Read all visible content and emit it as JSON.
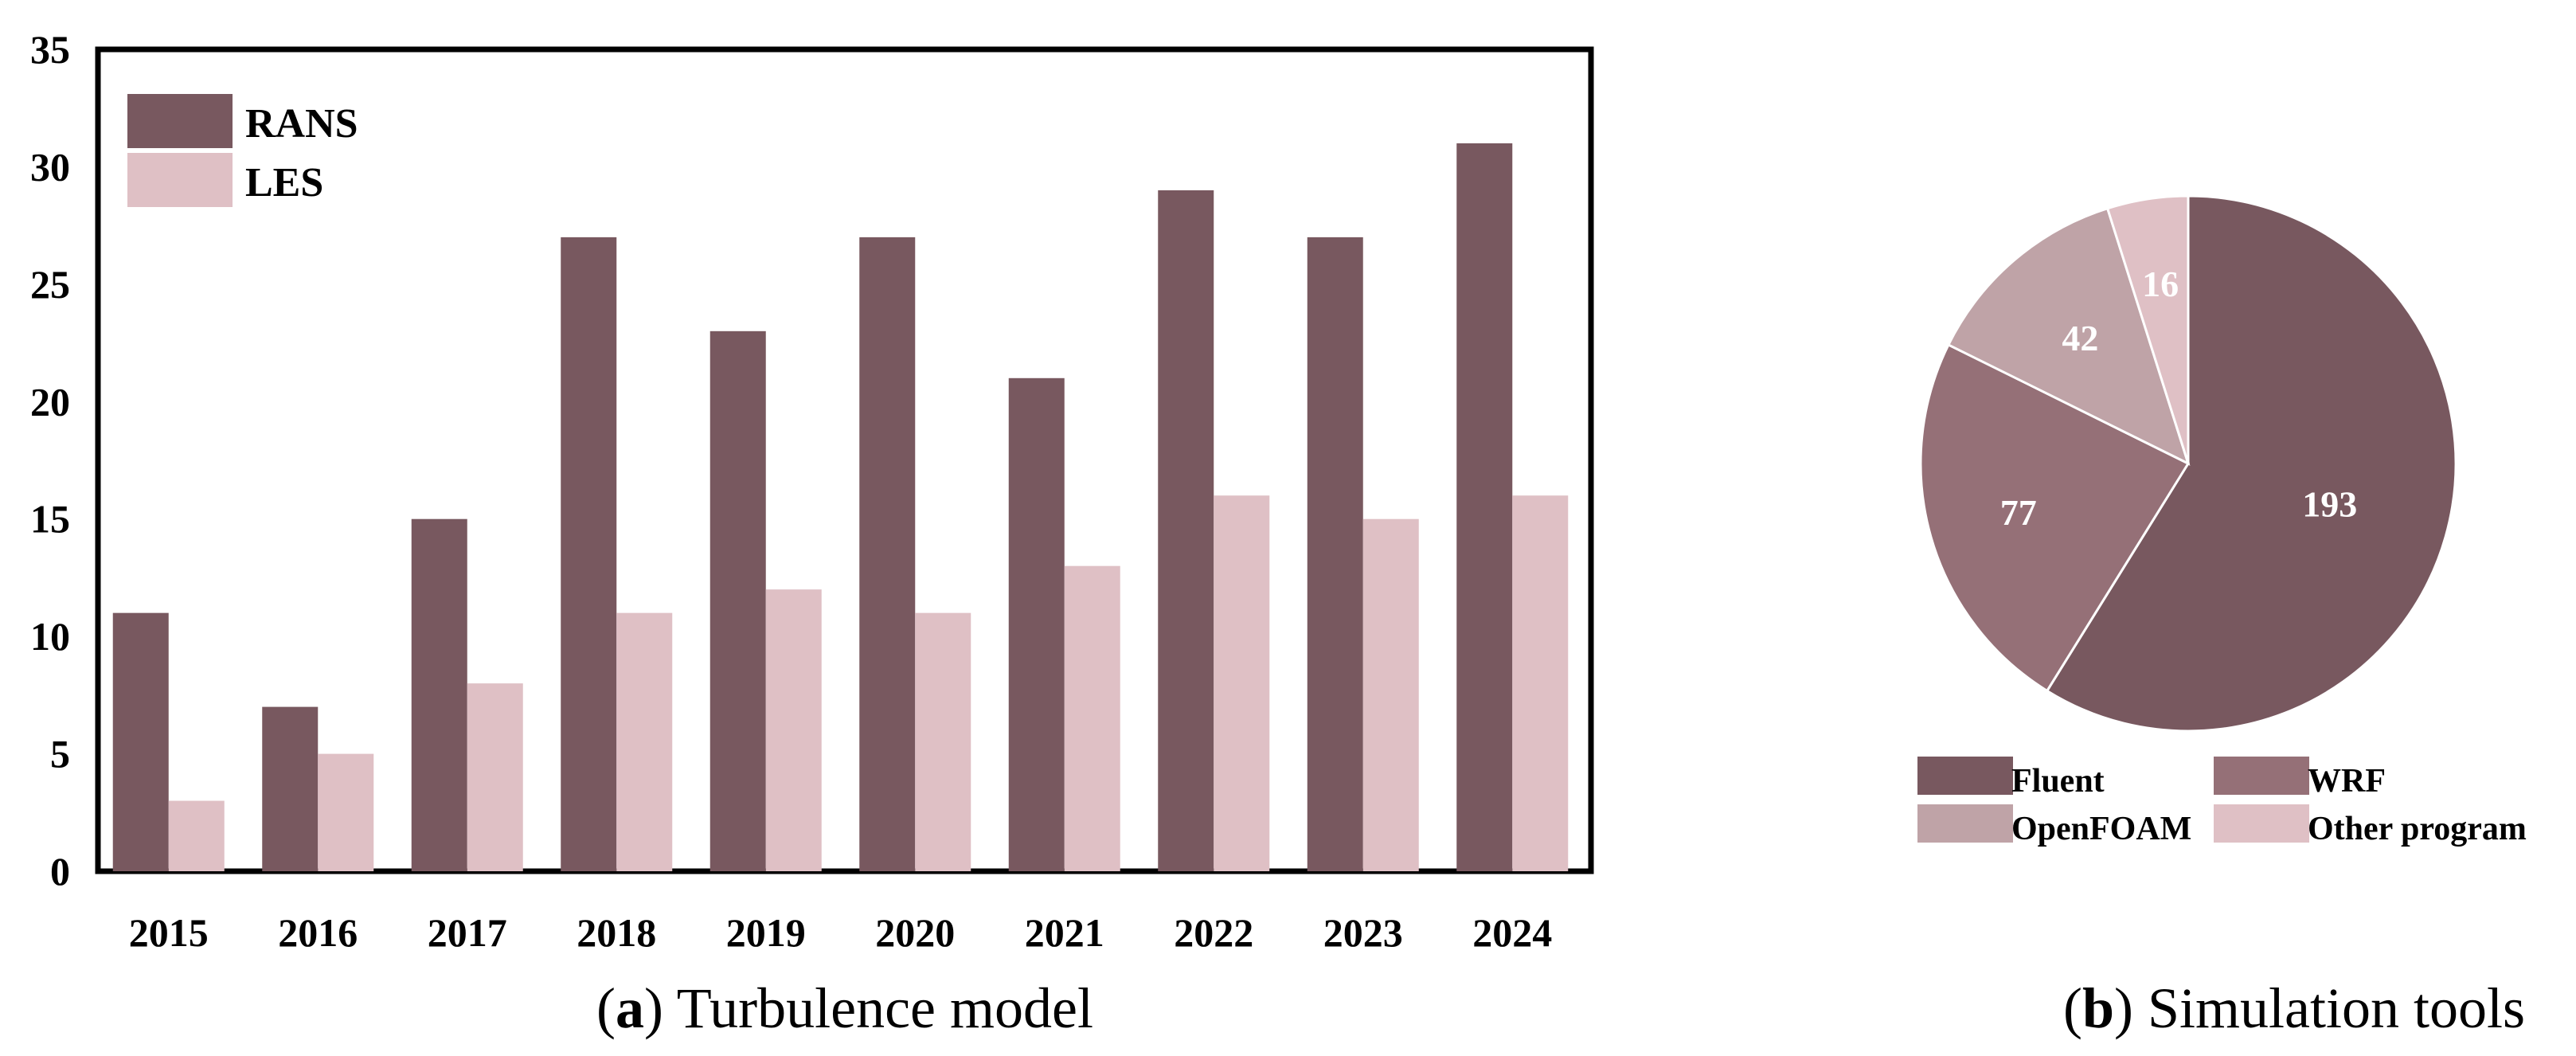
{
  "chart_data": [
    {
      "type": "bar",
      "categories": [
        "2015",
        "2016",
        "2017",
        "2018",
        "2019",
        "2020",
        "2021",
        "2022",
        "2023",
        "2024"
      ],
      "series": [
        {
          "name": "RANS",
          "values": [
            11,
            7,
            15,
            27,
            23,
            27,
            21,
            29,
            27,
            31
          ],
          "color": "#78585f"
        },
        {
          "name": "LES",
          "values": [
            3,
            5,
            8,
            11,
            12,
            11,
            13,
            16,
            15,
            16
          ],
          "color": "#dfc0c5"
        }
      ],
      "yticks": [
        "0",
        "5",
        "10",
        "15",
        "20",
        "25",
        "30",
        "35"
      ],
      "ylim": [
        0,
        35
      ],
      "caption_letter": "a",
      "caption_text": "Turbulence model",
      "legend_position": "top-left",
      "grid": false
    },
    {
      "type": "pie",
      "labels": [
        "Fluent",
        "WRF",
        "OpenFOAM",
        "Other program"
      ],
      "values": [
        193,
        77,
        42,
        16
      ],
      "colors": [
        "#78585f",
        "#957077",
        "#bfa3a7",
        "#dfc0c5"
      ],
      "caption_letter": "b",
      "caption_text": "Simulation tools",
      "legend_position": "bottom"
    }
  ]
}
